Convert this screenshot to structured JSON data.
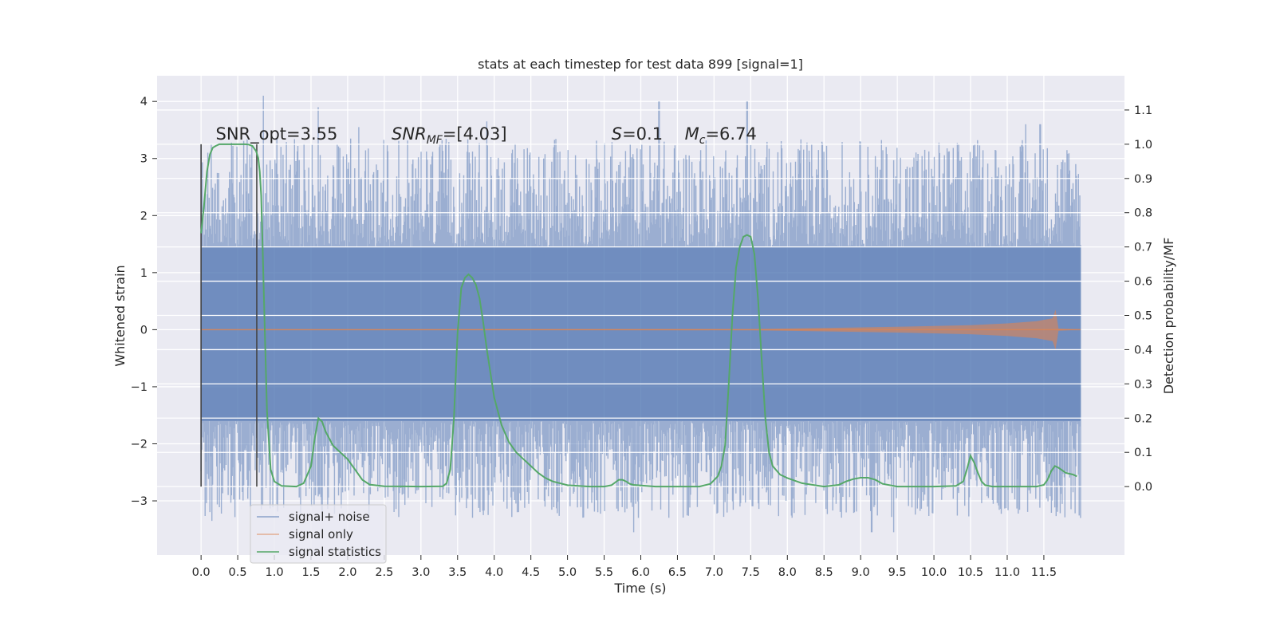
{
  "chart_data": {
    "type": "line",
    "title": "stats at each timestep for test data 899 [signal=1]",
    "xlabel": "Time (s)",
    "ylabel": "Whitened strain",
    "ylabel_right": "Detection probability/MF",
    "xlim": [
      -0.6,
      12.6
    ],
    "ylim": [
      -3.95,
      4.45
    ],
    "ylim_right": [
      -0.2,
      1.2
    ],
    "xticks": [
      0,
      0.5,
      1,
      1.5,
      2,
      2.5,
      3,
      3.5,
      4,
      4.5,
      5,
      5.5,
      6,
      6.5,
      7,
      7.5,
      8,
      8.5,
      9,
      9.5,
      10,
      10.5,
      11,
      11.5
    ],
    "xtick_labels": [
      "0.0",
      "0.5",
      "1.0",
      "1.5",
      "2.0",
      "2.5",
      "3.0",
      "3.5",
      "4.0",
      "4.5",
      "5.0",
      "5.5",
      "6.0",
      "6.5",
      "7.0",
      "7.5",
      "8.0",
      "8.5",
      "9.0",
      "9.5",
      "10.0",
      "10.5",
      "11.0",
      "11.5"
    ],
    "yticks": [
      -3,
      -2,
      -1,
      0,
      1,
      2,
      3,
      4
    ],
    "ytick_labels": [
      "−3",
      "−2",
      "−1",
      "0",
      "1",
      "2",
      "3",
      "4"
    ],
    "yticks_right": [
      0,
      0.1,
      0.2,
      0.3,
      0.4,
      0.5,
      0.6,
      0.7,
      0.8,
      0.9,
      1.0,
      1.1
    ],
    "ytick_labels_right": [
      "0.0",
      "0.1",
      "0.2",
      "0.3",
      "0.4",
      "0.5",
      "0.6",
      "0.7",
      "0.8",
      "0.9",
      "1.0",
      "1.1"
    ],
    "grid": true,
    "legend_position": "lower-left",
    "annotations": [
      {
        "text": "SNR_opt=3.55",
        "x": 0.2,
        "y": 3.33
      },
      {
        "text": "SNR_MF=[4.03]",
        "x": 2.6,
        "y": 3.33
      },
      {
        "text": "S=0.1",
        "x": 5.6,
        "y": 3.33
      },
      {
        "text": "M_c=6.74",
        "x": 6.6,
        "y": 3.33
      }
    ],
    "vlines": [
      {
        "x": 0.0,
        "ymin": -2.75,
        "ymax": 3.25,
        "color": "#444444"
      },
      {
        "x": 0.76,
        "ymin": -2.75,
        "ymax": 3.25,
        "color": "#444444"
      }
    ],
    "series": [
      {
        "name": "signal+ noise",
        "axis": "left",
        "color": "#4c72b0",
        "opacity": 0.5,
        "x_start": 0.0,
        "x_end": 12.0,
        "band_typical": [
          -1.6,
          1.45
        ],
        "envelope_max": 4.1,
        "envelope_min": -3.55,
        "peaks": [
          {
            "x": 0.85,
            "y": 4.1
          },
          {
            "x": 1.6,
            "y": 3.9
          },
          {
            "x": 2.15,
            "y": 3.55
          },
          {
            "x": 3.9,
            "y": 3.65
          },
          {
            "x": 6.25,
            "y": 4.0
          },
          {
            "x": 7.45,
            "y": 4.0
          },
          {
            "x": 11.25,
            "y": 3.6
          },
          {
            "x": 11.45,
            "y": 3.6
          }
        ],
        "troughs": [
          {
            "x": 0.15,
            "y": -3.35
          },
          {
            "x": 3.85,
            "y": -3.25
          },
          {
            "x": 5.9,
            "y": -3.55
          },
          {
            "x": 9.15,
            "y": -3.55
          },
          {
            "x": 9.45,
            "y": -3.55
          },
          {
            "x": 12.0,
            "y": -3.3
          }
        ]
      },
      {
        "name": "signal only",
        "axis": "left",
        "color": "#dd8452",
        "x": [
          0,
          7.5,
          8.5,
          9.5,
          10.5,
          11.0,
          11.4,
          11.62,
          11.66,
          11.7,
          12.0
        ],
        "envelope": [
          0.003,
          0.01,
          0.03,
          0.05,
          0.08,
          0.11,
          0.15,
          0.2,
          0.35,
          0.02,
          0.0
        ]
      },
      {
        "name": "signal statistics",
        "axis": "right",
        "color": "#55a868",
        "x": [
          0.0,
          0.04,
          0.08,
          0.12,
          0.16,
          0.2,
          0.25,
          0.3,
          0.4,
          0.5,
          0.6,
          0.65,
          0.7,
          0.75,
          0.78,
          0.8,
          0.82,
          0.84,
          0.87,
          0.9,
          0.95,
          1.0,
          1.1,
          1.3,
          1.4,
          1.5,
          1.55,
          1.6,
          1.65,
          1.7,
          1.75,
          1.8,
          1.9,
          2.0,
          2.1,
          2.2,
          2.3,
          2.5,
          3.0,
          3.3,
          3.35,
          3.4,
          3.45,
          3.5,
          3.55,
          3.6,
          3.65,
          3.7,
          3.75,
          3.8,
          3.85,
          3.9,
          4.0,
          4.1,
          4.2,
          4.3,
          4.4,
          4.5,
          4.6,
          4.7,
          4.8,
          5.0,
          5.3,
          5.5,
          5.6,
          5.65,
          5.7,
          5.75,
          5.8,
          5.85,
          5.9,
          6.2,
          6.5,
          6.8,
          6.95,
          7.05,
          7.1,
          7.15,
          7.2,
          7.25,
          7.3,
          7.35,
          7.4,
          7.45,
          7.5,
          7.55,
          7.6,
          7.65,
          7.7,
          7.75,
          7.8,
          7.9,
          8.0,
          8.2,
          8.5,
          8.7,
          8.8,
          8.9,
          9.0,
          9.1,
          9.2,
          9.3,
          9.5,
          10.0,
          10.3,
          10.4,
          10.45,
          10.5,
          10.55,
          10.6,
          10.65,
          10.7,
          10.8,
          11.0,
          11.4,
          11.5,
          11.55,
          11.6,
          11.65,
          11.7,
          11.8,
          11.9,
          11.95
        ],
        "values": [
          0.74,
          0.82,
          0.92,
          0.97,
          0.99,
          0.995,
          1.0,
          1.0,
          1.0,
          1.0,
          1.0,
          0.999,
          0.995,
          0.98,
          0.96,
          0.92,
          0.85,
          0.7,
          0.45,
          0.22,
          0.05,
          0.015,
          0.002,
          0.0,
          0.01,
          0.06,
          0.14,
          0.2,
          0.19,
          0.16,
          0.14,
          0.12,
          0.1,
          0.08,
          0.05,
          0.02,
          0.006,
          0.001,
          0.0,
          0.001,
          0.01,
          0.05,
          0.2,
          0.45,
          0.58,
          0.61,
          0.62,
          0.61,
          0.59,
          0.55,
          0.48,
          0.4,
          0.26,
          0.18,
          0.13,
          0.1,
          0.08,
          0.06,
          0.04,
          0.025,
          0.015,
          0.004,
          0.0,
          0.0,
          0.004,
          0.012,
          0.02,
          0.02,
          0.015,
          0.008,
          0.005,
          0.0,
          0.0,
          0.0,
          0.008,
          0.03,
          0.06,
          0.12,
          0.3,
          0.5,
          0.64,
          0.7,
          0.73,
          0.735,
          0.73,
          0.68,
          0.55,
          0.37,
          0.2,
          0.1,
          0.06,
          0.035,
          0.025,
          0.01,
          0.0,
          0.005,
          0.015,
          0.022,
          0.026,
          0.026,
          0.02,
          0.008,
          0.0,
          0.0,
          0.002,
          0.015,
          0.05,
          0.09,
          0.07,
          0.04,
          0.015,
          0.004,
          0.0,
          0.0,
          0.0,
          0.005,
          0.02,
          0.045,
          0.06,
          0.055,
          0.04,
          0.035,
          0.03
        ]
      }
    ]
  }
}
